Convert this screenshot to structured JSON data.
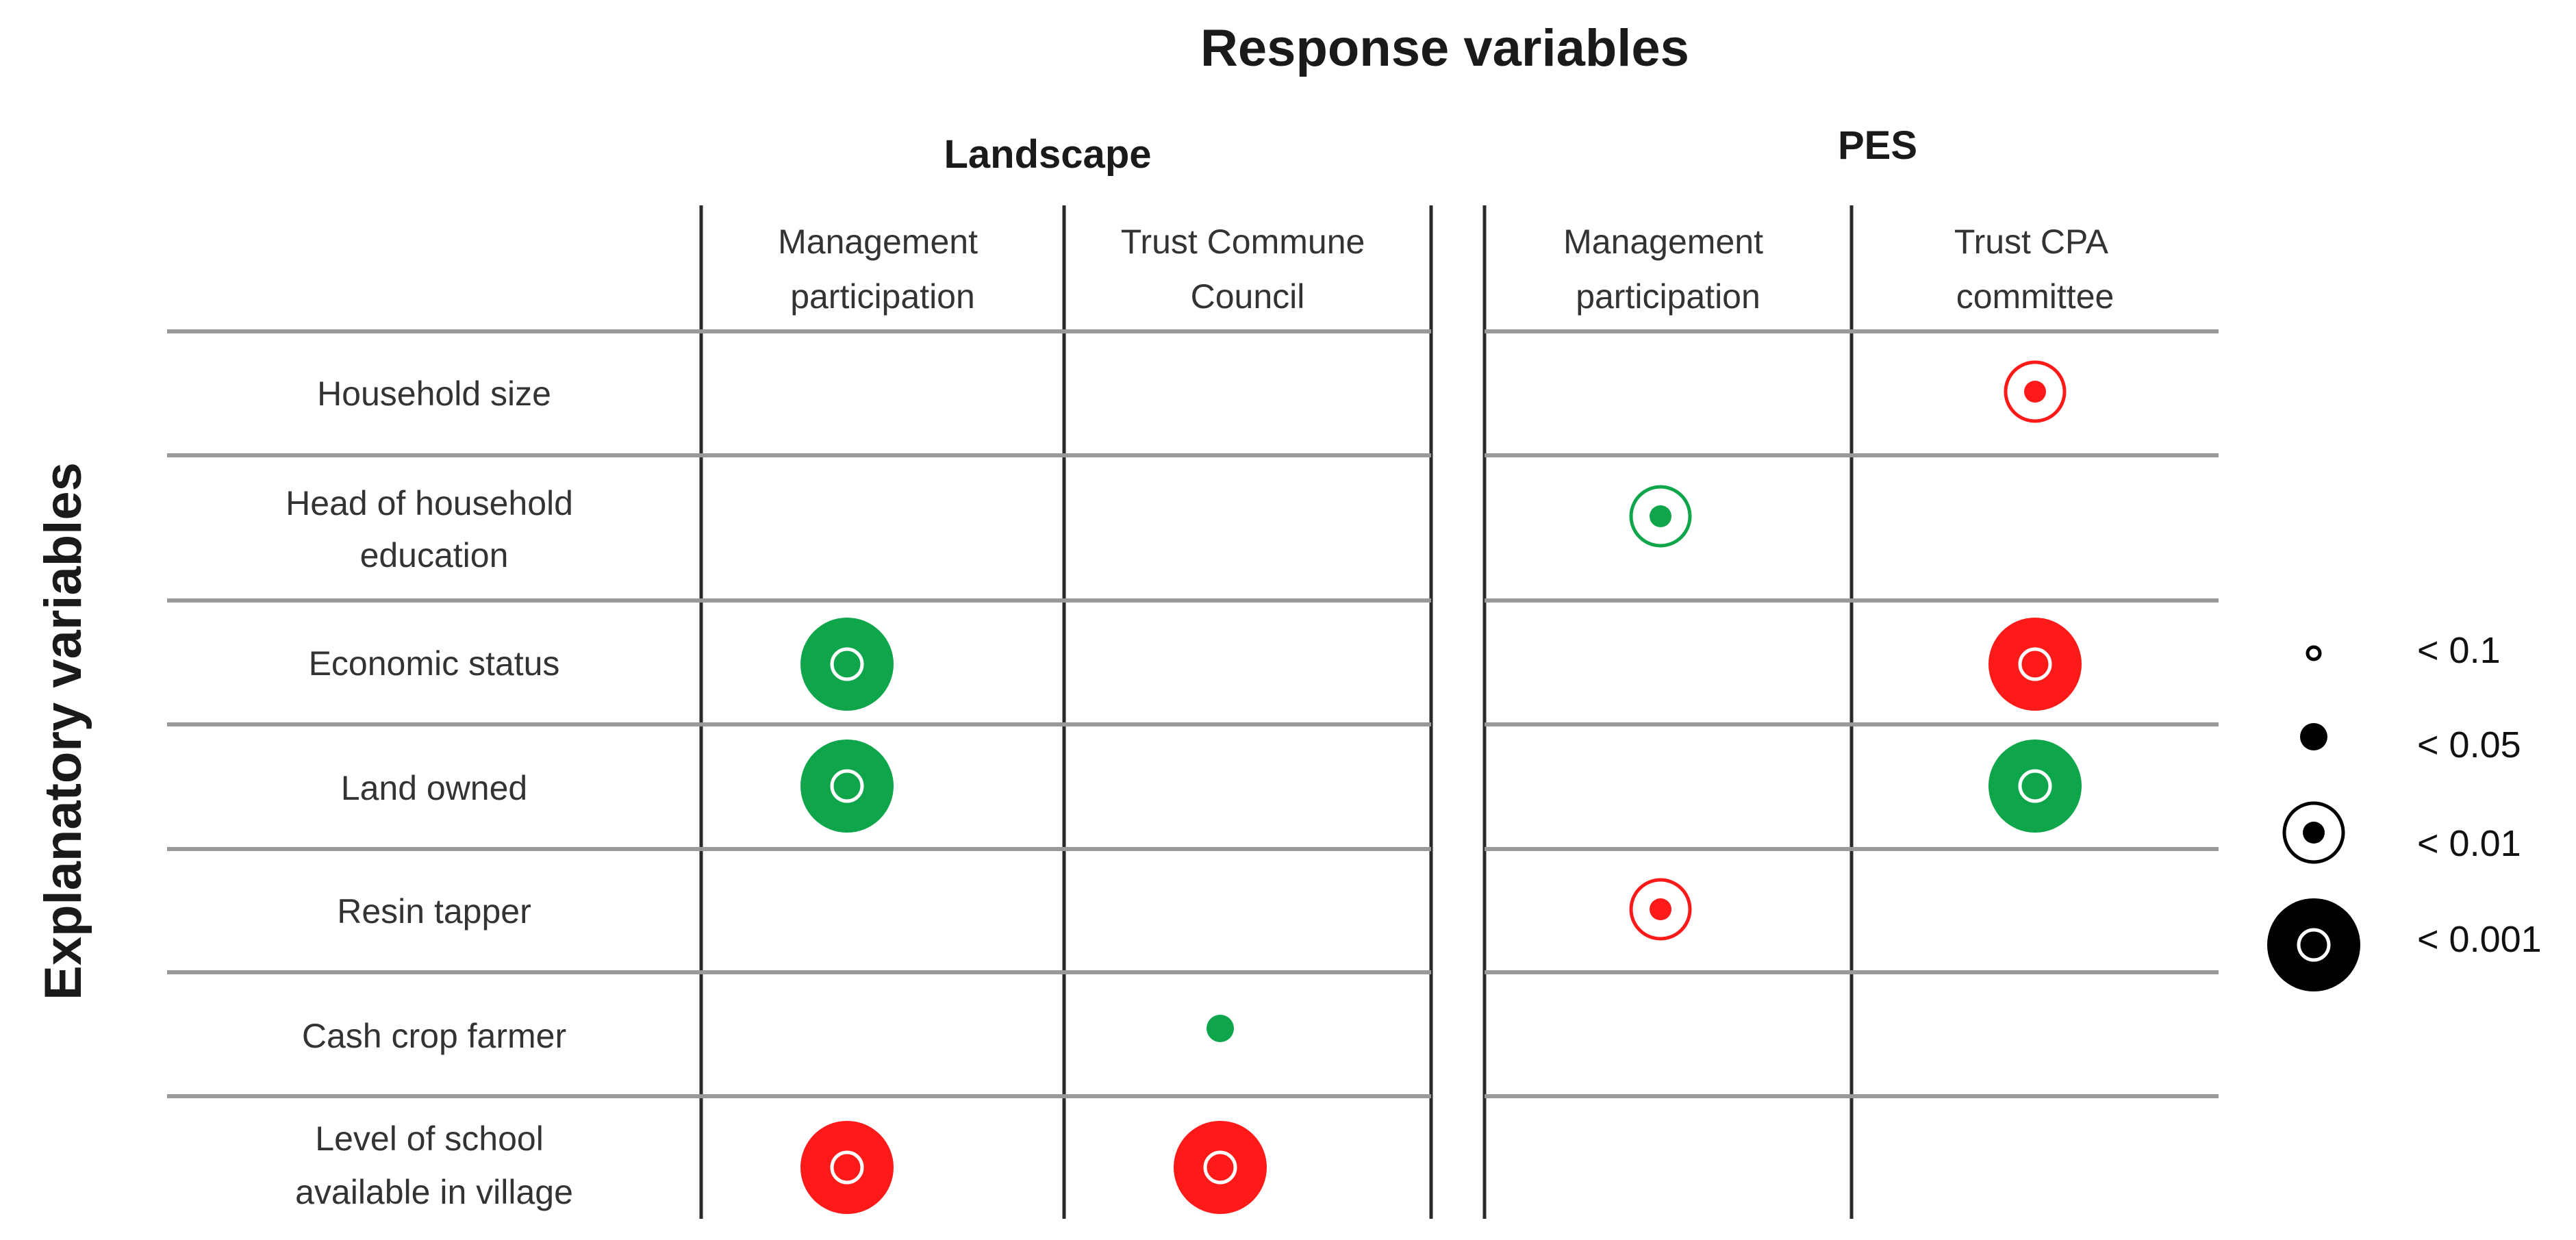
{
  "figure": {
    "title": "Response variables",
    "y_title": "Explanatory variables",
    "groups": [
      {
        "label": "Landscape"
      },
      {
        "label": "PES"
      }
    ],
    "columns": [
      {
        "lines": [
          "Management",
          "participation"
        ]
      },
      {
        "lines": [
          "Trust  Commune",
          "Council"
        ]
      },
      {
        "lines": [
          "Management",
          "participation"
        ]
      },
      {
        "lines": [
          "Trust  CPA",
          "committee"
        ]
      }
    ],
    "rows": [
      {
        "lines": [
          "Household size"
        ]
      },
      {
        "lines": [
          "Head of household",
          "education"
        ]
      },
      {
        "lines": [
          "Economic status"
        ]
      },
      {
        "lines": [
          "Land owned"
        ]
      },
      {
        "lines": [
          "Resin tapper"
        ]
      },
      {
        "lines": [
          "Cash crop farmer"
        ]
      },
      {
        "lines": [
          "Level  of school",
          "available in village"
        ]
      }
    ],
    "colors": {
      "positive": "#0fa64b",
      "negative": "#ff1a1a",
      "legend": "#000000",
      "grid": "#999999",
      "divider": "#2a2a2a"
    },
    "cells": [
      {
        "row": 0,
        "col": 3,
        "level": "<0.01",
        "sign": "negative"
      },
      {
        "row": 1,
        "col": 2,
        "level": "<0.01",
        "sign": "positive"
      },
      {
        "row": 2,
        "col": 0,
        "level": "<0.001",
        "sign": "positive"
      },
      {
        "row": 2,
        "col": 3,
        "level": "<0.001",
        "sign": "negative"
      },
      {
        "row": 3,
        "col": 0,
        "level": "<0.001",
        "sign": "positive"
      },
      {
        "row": 3,
        "col": 3,
        "level": "<0.001",
        "sign": "positive"
      },
      {
        "row": 4,
        "col": 2,
        "level": "<0.01",
        "sign": "negative"
      },
      {
        "row": 5,
        "col": 1,
        "level": "<0.05",
        "sign": "positive"
      },
      {
        "row": 6,
        "col": 0,
        "level": "<0.001",
        "sign": "negative"
      },
      {
        "row": 6,
        "col": 1,
        "level": "<0.001",
        "sign": "negative"
      }
    ],
    "legend": [
      {
        "level": "<0.1",
        "label": "< 0.1"
      },
      {
        "level": "<0.05",
        "label": "< 0.05"
      },
      {
        "level": "<0.01",
        "label": "< 0.01"
      },
      {
        "level": "<0.001",
        "label": "< 0.001"
      }
    ]
  }
}
